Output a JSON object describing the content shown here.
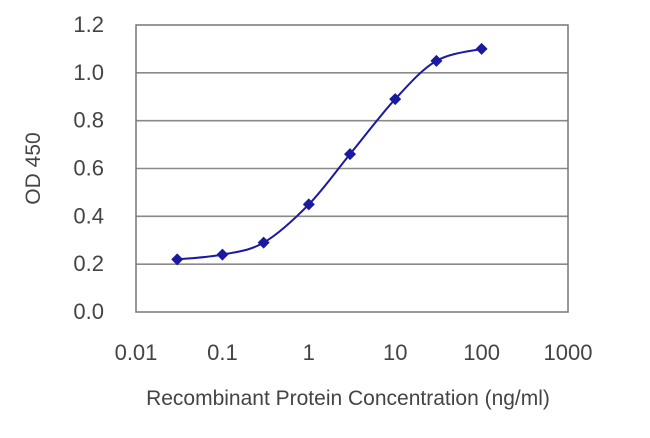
{
  "chart_data": {
    "type": "line",
    "title": "",
    "xlabel": "Recombinant Protein Concentration (ng/ml)",
    "ylabel": "OD 450",
    "x_scale": "log",
    "xlim": [
      0.01,
      1000
    ],
    "ylim": [
      0.0,
      1.2
    ],
    "x_ticks": [
      "0.01",
      "0.1",
      "1",
      "10",
      "100",
      "1000"
    ],
    "y_ticks": [
      "0.0",
      "0.2",
      "0.4",
      "0.6",
      "0.8",
      "1.0",
      "1.2"
    ],
    "grid": "horizontal",
    "legend": "none",
    "series": [
      {
        "color": "#1a1aa0",
        "marker": "diamond",
        "points": [
          {
            "x": 0.03,
            "y": 0.22
          },
          {
            "x": 0.1,
            "y": 0.24
          },
          {
            "x": 0.3,
            "y": 0.29
          },
          {
            "x": 1,
            "y": 0.45
          },
          {
            "x": 3,
            "y": 0.66
          },
          {
            "x": 10,
            "y": 0.89
          },
          {
            "x": 30,
            "y": 1.05
          },
          {
            "x": 100,
            "y": 1.1
          }
        ]
      }
    ]
  }
}
